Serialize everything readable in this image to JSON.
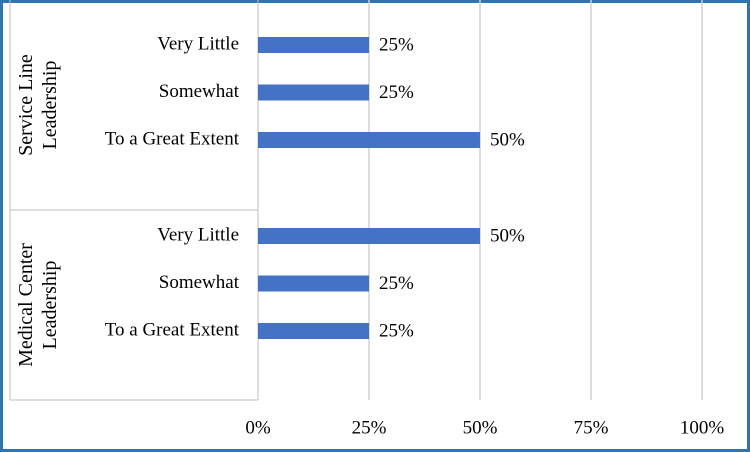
{
  "chart_data": {
    "type": "bar",
    "orientation": "horizontal",
    "color": "#4472c4",
    "grid": true,
    "groups": [
      {
        "label": "Service Line Leadership",
        "categories": [
          "Very Little",
          "Somewhat",
          "To a Great Extent"
        ],
        "values": [
          25,
          25,
          50
        ],
        "value_labels": [
          "25%",
          "25%",
          "50%"
        ]
      },
      {
        "label": "Medical Center Leadership",
        "categories": [
          "Very Little",
          "Somewhat",
          "To a Great Extent"
        ],
        "values": [
          50,
          25,
          25
        ],
        "value_labels": [
          "50%",
          "25%",
          "25%"
        ]
      }
    ],
    "xlim": [
      0,
      100
    ],
    "xticks": [
      {
        "value": 0,
        "label": "0%"
      },
      {
        "value": 25,
        "label": "25%"
      },
      {
        "value": 50,
        "label": "50%"
      },
      {
        "value": 75,
        "label": "75%"
      },
      {
        "value": 100,
        "label": "100%"
      }
    ]
  }
}
